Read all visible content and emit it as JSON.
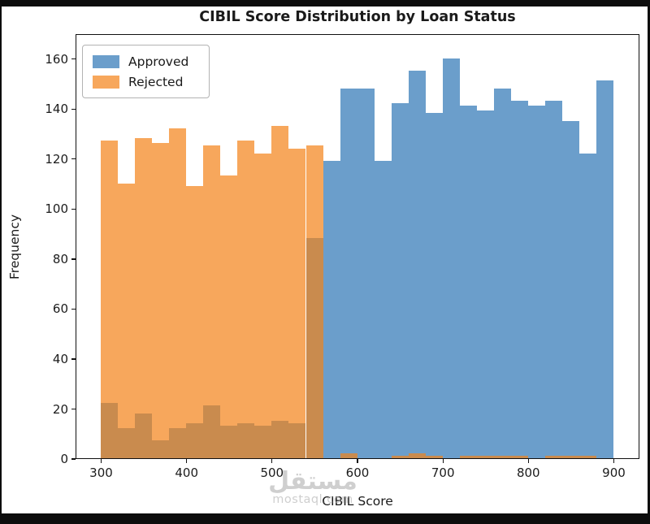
{
  "title": "CIBIL Score Distribution by Loan Status",
  "colors": {
    "approved": "#6b9ecb",
    "rejected": "#f7a75c",
    "overlap": "#c98b4e",
    "spine": "#111111",
    "frame": "#0d0d0d",
    "background": "#ffffff"
  },
  "legend": {
    "items": [
      {
        "label": "Approved",
        "color": "#6b9ecb"
      },
      {
        "label": "Rejected",
        "color": "#f7a75c"
      }
    ]
  },
  "watermark": {
    "arabic": "مستقل",
    "domain": "mostaql.com"
  },
  "chart_data": {
    "type": "bar",
    "subtype": "overlaid-histogram",
    "title": "CIBIL Score Distribution by Loan Status",
    "xlabel": "CIBIL Score",
    "ylabel": "Frequency",
    "bins": {
      "start": 300,
      "end": 900,
      "width": 20,
      "count": 30
    },
    "bin_edges": [
      300,
      320,
      340,
      360,
      380,
      400,
      420,
      440,
      460,
      480,
      500,
      520,
      540,
      560,
      580,
      600,
      620,
      640,
      660,
      680,
      700,
      720,
      740,
      760,
      780,
      800,
      820,
      840,
      860,
      880,
      900
    ],
    "series": [
      {
        "name": "Approved",
        "values": [
          22,
          12,
          18,
          7,
          12,
          14,
          21,
          13,
          14,
          13,
          15,
          14,
          88,
          119,
          148,
          148,
          119,
          142,
          155,
          138,
          160,
          141,
          139,
          148,
          143,
          141,
          143,
          135,
          122,
          151
        ]
      },
      {
        "name": "Rejected",
        "values": [
          127,
          110,
          128,
          126,
          132,
          109,
          125,
          113,
          127,
          122,
          133,
          124,
          125,
          0,
          2,
          0,
          0,
          1,
          2,
          1,
          0,
          1,
          1,
          1,
          1,
          0,
          1,
          1,
          1,
          0
        ]
      }
    ],
    "xlim": [
      270,
      930
    ],
    "ylim": [
      0,
      170
    ],
    "xticks": [
      300,
      400,
      500,
      600,
      700,
      800,
      900
    ],
    "yticks": [
      0,
      20,
      40,
      60,
      80,
      100,
      120,
      140,
      160
    ],
    "grid": false,
    "legend_position": "upper left"
  }
}
